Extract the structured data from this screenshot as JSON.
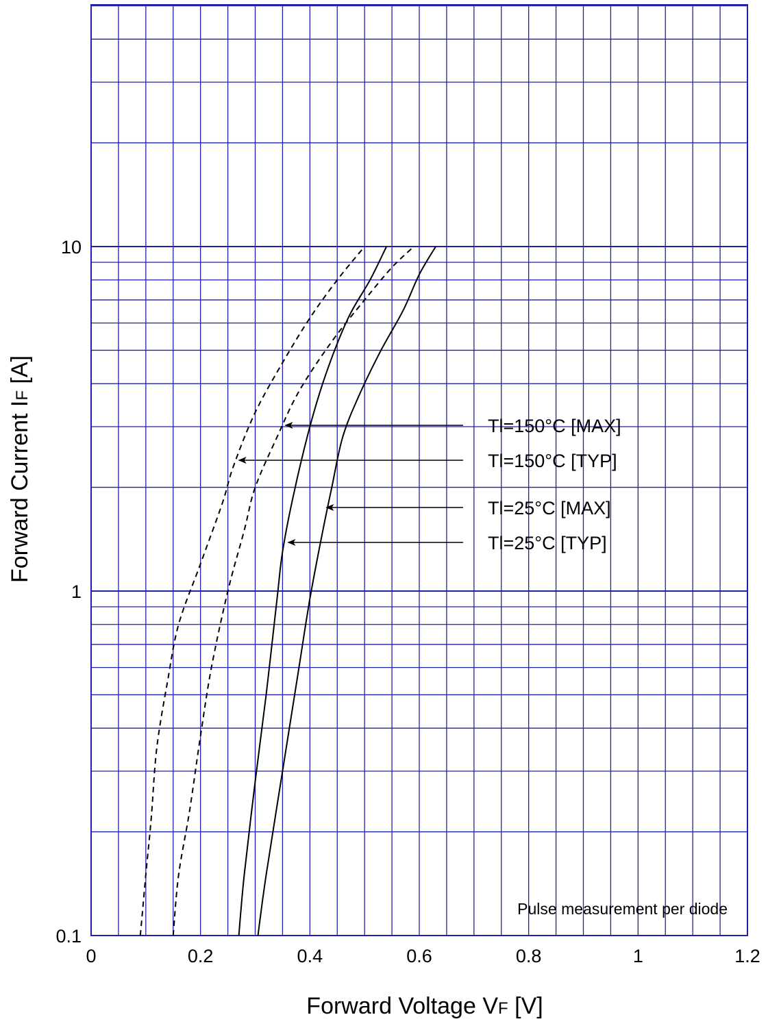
{
  "chart_data": {
    "type": "line",
    "title": "",
    "xlabel": {
      "main": "Forward Voltage  V",
      "sub": "F",
      "unit": "  [V]"
    },
    "ylabel": {
      "main": "Forward Current  I",
      "sub": "F",
      "unit": "  [A]"
    },
    "xlim": [
      0,
      1.2
    ],
    "ylim": [
      0.1,
      50
    ],
    "y_scale": "log",
    "grid": true,
    "x_ticks": [
      {
        "value": 0,
        "label": "0"
      },
      {
        "value": 0.2,
        "label": "0.2"
      },
      {
        "value": 0.4,
        "label": "0.4"
      },
      {
        "value": 0.6,
        "label": "0.6"
      },
      {
        "value": 0.8,
        "label": "0.8"
      },
      {
        "value": 1.0,
        "label": "1"
      },
      {
        "value": 1.2,
        "label": "1.2"
      }
    ],
    "y_ticks": [
      {
        "value": 0.1,
        "label": "0.1"
      },
      {
        "value": 1,
        "label": "1"
      },
      {
        "value": 10,
        "label": "10"
      }
    ],
    "series": [
      {
        "name": "Tl=150°C [TYP]",
        "style": "dashed",
        "points": [
          [
            0.09,
            0.1
          ],
          [
            0.1,
            0.15
          ],
          [
            0.11,
            0.22
          ],
          [
            0.12,
            0.35
          ],
          [
            0.14,
            0.55
          ],
          [
            0.16,
            0.8
          ],
          [
            0.2,
            1.2
          ],
          [
            0.24,
            1.8
          ],
          [
            0.26,
            2.3
          ],
          [
            0.3,
            3.3
          ],
          [
            0.35,
            4.6
          ],
          [
            0.4,
            6.2
          ],
          [
            0.45,
            8.0
          ],
          [
            0.5,
            10.0
          ]
        ]
      },
      {
        "name": "Tl=150°C [MAX]",
        "style": "dashed",
        "points": [
          [
            0.15,
            0.1
          ],
          [
            0.16,
            0.15
          ],
          [
            0.18,
            0.23
          ],
          [
            0.2,
            0.38
          ],
          [
            0.22,
            0.6
          ],
          [
            0.25,
            1.0
          ],
          [
            0.28,
            1.5
          ],
          [
            0.3,
            2.0
          ],
          [
            0.34,
            2.8
          ],
          [
            0.38,
            3.8
          ],
          [
            0.44,
            5.3
          ],
          [
            0.5,
            7.0
          ],
          [
            0.55,
            8.7
          ],
          [
            0.59,
            10.0
          ]
        ]
      },
      {
        "name": "Tl=25°C [TYP]",
        "style": "solid",
        "points": [
          [
            0.27,
            0.1
          ],
          [
            0.28,
            0.15
          ],
          [
            0.3,
            0.28
          ],
          [
            0.32,
            0.5
          ],
          [
            0.34,
            0.95
          ],
          [
            0.35,
            1.3
          ],
          [
            0.37,
            1.9
          ],
          [
            0.4,
            3.0
          ],
          [
            0.43,
            4.3
          ],
          [
            0.47,
            6.2
          ],
          [
            0.51,
            8.0
          ],
          [
            0.54,
            10.0
          ]
        ]
      },
      {
        "name": "Tl=25°C [MAX]",
        "style": "solid",
        "points": [
          [
            0.305,
            0.1
          ],
          [
            0.32,
            0.15
          ],
          [
            0.35,
            0.3
          ],
          [
            0.38,
            0.6
          ],
          [
            0.4,
            0.95
          ],
          [
            0.42,
            1.4
          ],
          [
            0.44,
            2.0
          ],
          [
            0.46,
            2.8
          ],
          [
            0.49,
            3.7
          ],
          [
            0.53,
            5.0
          ],
          [
            0.57,
            6.5
          ],
          [
            0.6,
            8.3
          ],
          [
            0.63,
            10.0
          ]
        ]
      }
    ],
    "annotations": [
      {
        "text": "Tl=150°C [MAX]",
        "target": [
          0.355,
          3.0
        ]
      },
      {
        "text": "Tl=150°C [TYP]",
        "target": [
          0.27,
          2.4
        ]
      },
      {
        "text": "Tl=25°C [MAX]",
        "target": [
          0.43,
          1.75
        ]
      },
      {
        "text": "Tl=25°C [TYP]",
        "target": [
          0.36,
          1.4
        ]
      }
    ],
    "note": "Pulse measurement per diode",
    "colors": {
      "grid": "#1f1fa8",
      "frame": "#1f1fa8",
      "curve": "#000000"
    }
  }
}
